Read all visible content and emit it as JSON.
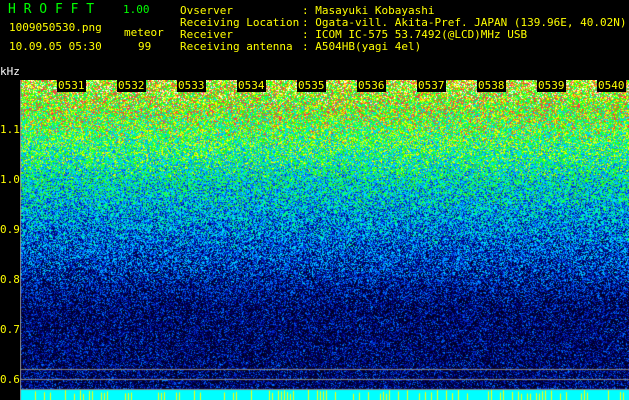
{
  "app": {
    "name": "H R O F F T",
    "version": "1.00"
  },
  "file": {
    "name": "1009050530.png",
    "datetime": "10.09.05 05:30"
  },
  "meteor": {
    "label": "meteor",
    "count": "99"
  },
  "info": [
    {
      "label": "Ovserver",
      "value": ": Masayuki Kobayashi"
    },
    {
      "label": "Receiving Location",
      "value": ": Ogata-vill. Akita-Pref. JAPAN (139.96E, 40.02N)"
    },
    {
      "label": "Receiver",
      "value": ": ICOM IC-575 53.7492(@LCD)MHz USB"
    },
    {
      "label": "Receiving antenna",
      "value": ": A504HB(yagi 4el)"
    }
  ],
  "spectrogram": {
    "y_unit": "kHz",
    "y_ticks": [
      "1.1",
      "1.0",
      "0.9",
      "0.8",
      "0.7",
      "0.6"
    ],
    "time_labels": [
      "0531",
      "0532",
      "0533",
      "0534",
      "0535",
      "0536",
      "0537",
      "0538",
      "0539",
      "0540"
    ],
    "colors": {
      "background": "#000000",
      "text": "#ffff00",
      "title": "#00ff00",
      "baseline": "#00ffff"
    }
  }
}
